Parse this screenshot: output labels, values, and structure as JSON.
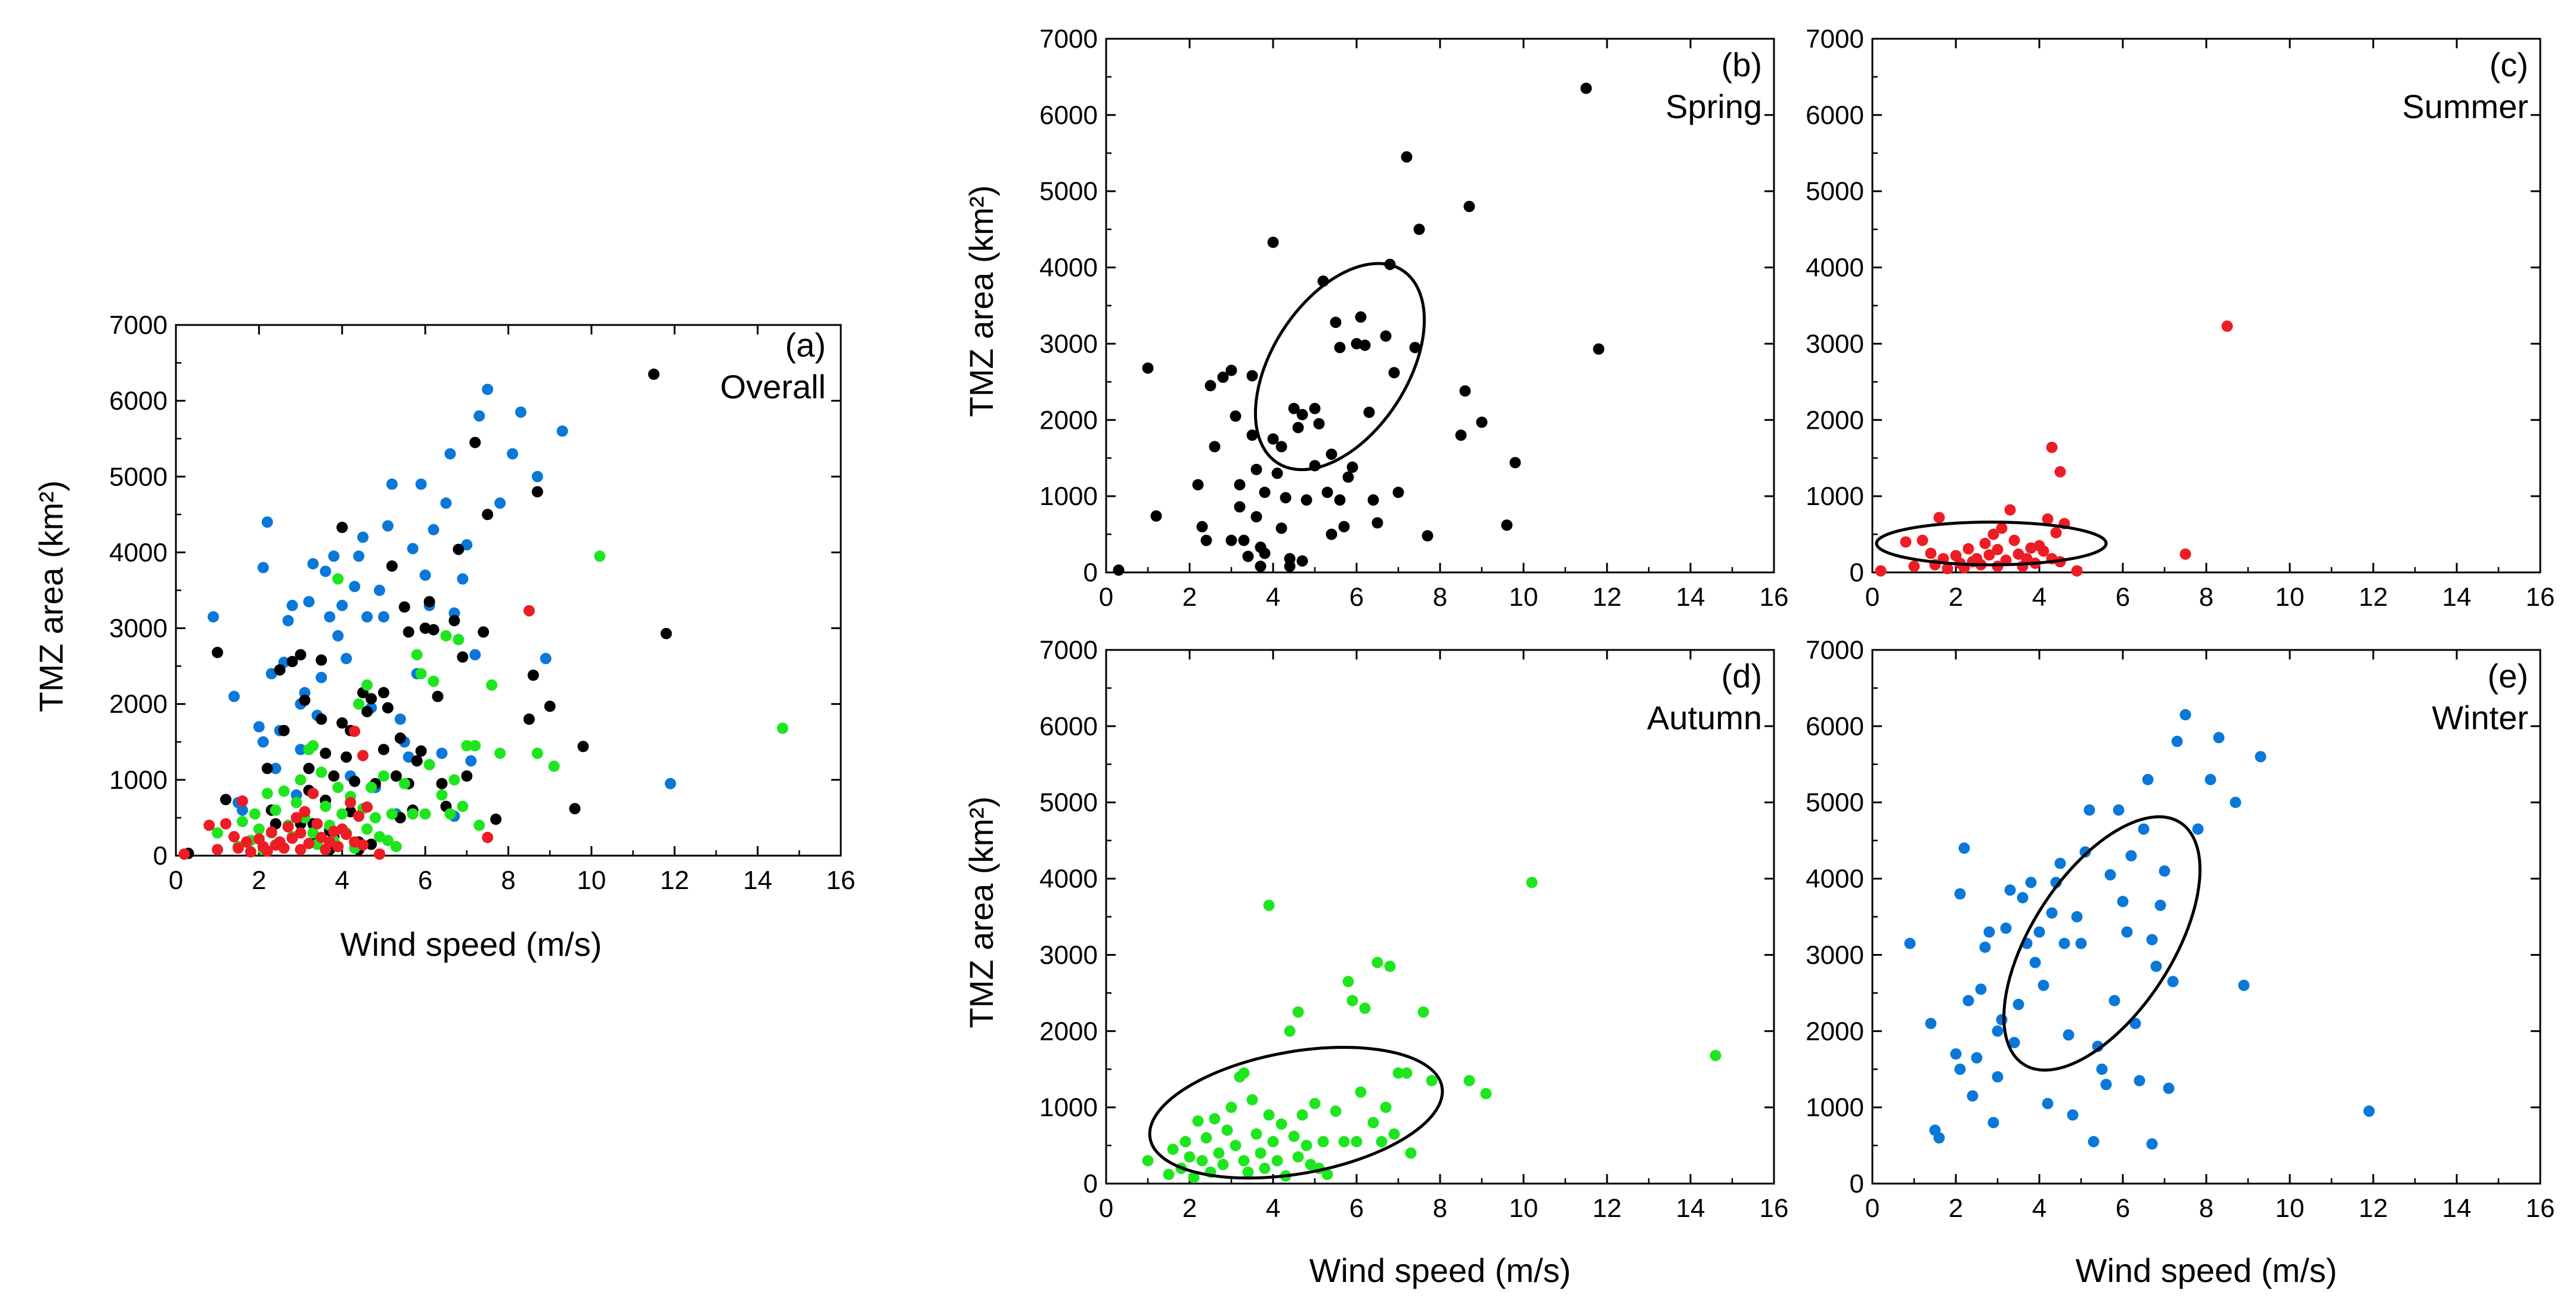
{
  "colors": {
    "spring": "#000000",
    "summer": "#ee1c24",
    "autumn": "#1ee61e",
    "winter": "#0a78d8"
  },
  "chart_data": [
    {
      "id": "a",
      "type": "scatter",
      "tag": "(a)",
      "title": "Overall",
      "xlabel": "Wind speed (m/s)",
      "ylabel": "TMZ area (km²)",
      "xlim": [
        0,
        16
      ],
      "ylim": [
        0,
        7000
      ],
      "xticks": [
        0,
        2,
        4,
        6,
        8,
        10,
        12,
        14,
        16
      ],
      "yticks": [
        0,
        1000,
        2000,
        3000,
        4000,
        5000,
        6000,
        7000
      ],
      "combine": [
        "spring",
        "summer",
        "autumn",
        "winter"
      ]
    },
    {
      "id": "b",
      "type": "scatter",
      "tag": "(b)",
      "title": "Spring",
      "season": "spring",
      "xlabel": "",
      "ylabel": "TMZ area (km²)",
      "xlim": [
        0,
        16
      ],
      "ylim": [
        0,
        7000
      ],
      "xticks": [
        0,
        2,
        4,
        6,
        8,
        10,
        12,
        14,
        16
      ],
      "yticks": [
        0,
        1000,
        2000,
        3000,
        4000,
        5000,
        6000,
        7000
      ],
      "ellipse": {
        "cx": 5.6,
        "cy": 2700,
        "rx_major": 2.75,
        "rx_minor": 1.62,
        "angle_deg": 57
      },
      "points": [
        [
          0.3,
          30
        ],
        [
          1.0,
          2680
        ],
        [
          1.2,
          740
        ],
        [
          2.2,
          1150
        ],
        [
          2.3,
          600
        ],
        [
          2.4,
          420
        ],
        [
          2.5,
          2450
        ],
        [
          2.6,
          1650
        ],
        [
          2.8,
          2560
        ],
        [
          3.0,
          2650
        ],
        [
          3.0,
          420
        ],
        [
          3.1,
          2050
        ],
        [
          3.2,
          1150
        ],
        [
          3.2,
          860
        ],
        [
          3.3,
          420
        ],
        [
          3.4,
          210
        ],
        [
          3.5,
          2580
        ],
        [
          3.5,
          1800
        ],
        [
          3.6,
          1350
        ],
        [
          3.6,
          730
        ],
        [
          3.7,
          330
        ],
        [
          3.7,
          80
        ],
        [
          3.8,
          1050
        ],
        [
          3.8,
          250
        ],
        [
          4.0,
          4330
        ],
        [
          4.0,
          1750
        ],
        [
          4.1,
          1300
        ],
        [
          4.2,
          1650
        ],
        [
          4.2,
          580
        ],
        [
          4.3,
          980
        ],
        [
          4.4,
          180
        ],
        [
          4.4,
          80
        ],
        [
          4.5,
          2150
        ],
        [
          4.6,
          1900
        ],
        [
          4.7,
          2070
        ],
        [
          4.7,
          150
        ],
        [
          4.8,
          950
        ],
        [
          5.0,
          2150
        ],
        [
          5.0,
          1400
        ],
        [
          5.1,
          1950
        ],
        [
          5.2,
          3820
        ],
        [
          5.3,
          1050
        ],
        [
          5.4,
          500
        ],
        [
          5.4,
          1550
        ],
        [
          5.5,
          3280
        ],
        [
          5.6,
          2950
        ],
        [
          5.6,
          950
        ],
        [
          5.7,
          600
        ],
        [
          5.8,
          1250
        ],
        [
          5.9,
          1380
        ],
        [
          6.0,
          3000
        ],
        [
          6.1,
          3350
        ],
        [
          6.2,
          2980
        ],
        [
          6.3,
          2100
        ],
        [
          6.4,
          950
        ],
        [
          6.5,
          650
        ],
        [
          6.7,
          3100
        ],
        [
          6.8,
          4040
        ],
        [
          6.9,
          2620
        ],
        [
          7.0,
          1050
        ],
        [
          7.2,
          5450
        ],
        [
          7.4,
          2950
        ],
        [
          7.5,
          4500
        ],
        [
          7.7,
          480
        ],
        [
          8.7,
          4800
        ],
        [
          8.6,
          2380
        ],
        [
          8.5,
          1800
        ],
        [
          9.0,
          1970
        ],
        [
          9.6,
          620
        ],
        [
          9.8,
          1440
        ],
        [
          11.5,
          6350
        ],
        [
          11.8,
          2930
        ]
      ]
    },
    {
      "id": "c",
      "type": "scatter",
      "tag": "(c)",
      "title": "Summer",
      "season": "summer",
      "xlabel": "",
      "ylabel": "",
      "xlim": [
        0,
        16
      ],
      "ylim": [
        0,
        7000
      ],
      "xticks": [
        0,
        2,
        4,
        6,
        8,
        10,
        12,
        14,
        16
      ],
      "yticks": [
        0,
        1000,
        2000,
        3000,
        4000,
        5000,
        6000,
        7000
      ],
      "ellipse": {
        "cx": 2.85,
        "cy": 380,
        "rx_major": 2.75,
        "rx_minor": 280,
        "angle_deg": 0
      },
      "points": [
        [
          0.2,
          20
        ],
        [
          0.8,
          400
        ],
        [
          1.0,
          80
        ],
        [
          1.2,
          420
        ],
        [
          1.4,
          250
        ],
        [
          1.5,
          100
        ],
        [
          1.6,
          720
        ],
        [
          1.7,
          180
        ],
        [
          1.8,
          50
        ],
        [
          2.0,
          220
        ],
        [
          2.1,
          120
        ],
        [
          2.2,
          60
        ],
        [
          2.3,
          310
        ],
        [
          2.4,
          140
        ],
        [
          2.5,
          180
        ],
        [
          2.6,
          100
        ],
        [
          2.7,
          380
        ],
        [
          2.8,
          230
        ],
        [
          2.9,
          500
        ],
        [
          3.0,
          80
        ],
        [
          3.0,
          300
        ],
        [
          3.1,
          580
        ],
        [
          3.2,
          160
        ],
        [
          3.3,
          820
        ],
        [
          3.4,
          420
        ],
        [
          3.5,
          240
        ],
        [
          3.6,
          80
        ],
        [
          3.7,
          180
        ],
        [
          3.8,
          320
        ],
        [
          3.9,
          120
        ],
        [
          4.0,
          350
        ],
        [
          4.1,
          280
        ],
        [
          4.2,
          700
        ],
        [
          4.3,
          180
        ],
        [
          4.4,
          520
        ],
        [
          4.5,
          140
        ],
        [
          4.6,
          640
        ],
        [
          4.3,
          1640
        ],
        [
          4.5,
          1320
        ],
        [
          4.9,
          20
        ],
        [
          7.5,
          240
        ],
        [
          8.5,
          3230
        ]
      ]
    },
    {
      "id": "d",
      "type": "scatter",
      "tag": "(d)",
      "title": "Autumn",
      "season": "autumn",
      "xlabel": "Wind speed (m/s)",
      "ylabel": "TMZ area (km²)",
      "xlim": [
        0,
        16
      ],
      "ylim": [
        0,
        7000
      ],
      "xticks": [
        0,
        2,
        4,
        6,
        8,
        10,
        12,
        14,
        16
      ],
      "yticks": [
        0,
        1000,
        2000,
        3000,
        4000,
        5000,
        6000,
        7000
      ],
      "ellipse": {
        "cx": 4.55,
        "cy": 930,
        "rx_major": 3.55,
        "rx_minor": 800,
        "angle_deg": 10
      },
      "points": [
        [
          1.0,
          300
        ],
        [
          1.5,
          120
        ],
        [
          1.6,
          450
        ],
        [
          1.8,
          200
        ],
        [
          1.9,
          550
        ],
        [
          2.0,
          350
        ],
        [
          2.1,
          80
        ],
        [
          2.2,
          820
        ],
        [
          2.3,
          300
        ],
        [
          2.4,
          600
        ],
        [
          2.5,
          150
        ],
        [
          2.6,
          850
        ],
        [
          2.7,
          400
        ],
        [
          2.8,
          250
        ],
        [
          2.9,
          700
        ],
        [
          3.0,
          1000
        ],
        [
          3.1,
          500
        ],
        [
          3.2,
          1400
        ],
        [
          3.3,
          1450
        ],
        [
          3.3,
          300
        ],
        [
          3.4,
          150
        ],
        [
          3.5,
          1100
        ],
        [
          3.6,
          650
        ],
        [
          3.7,
          400
        ],
        [
          3.8,
          200
        ],
        [
          3.9,
          3650
        ],
        [
          3.9,
          900
        ],
        [
          4.0,
          550
        ],
        [
          4.1,
          300
        ],
        [
          4.2,
          780
        ],
        [
          4.3,
          100
        ],
        [
          4.4,
          2000
        ],
        [
          4.5,
          620
        ],
        [
          4.6,
          2250
        ],
        [
          4.6,
          350
        ],
        [
          4.7,
          900
        ],
        [
          4.8,
          500
        ],
        [
          4.9,
          250
        ],
        [
          5.0,
          1050
        ],
        [
          5.1,
          200
        ],
        [
          5.2,
          550
        ],
        [
          5.3,
          120
        ],
        [
          5.5,
          950
        ],
        [
          5.7,
          550
        ],
        [
          5.8,
          2650
        ],
        [
          5.9,
          2400
        ],
        [
          6.0,
          550
        ],
        [
          6.1,
          1200
        ],
        [
          6.2,
          2300
        ],
        [
          6.4,
          800
        ],
        [
          6.5,
          2900
        ],
        [
          6.6,
          550
        ],
        [
          6.7,
          1000
        ],
        [
          6.8,
          2850
        ],
        [
          6.9,
          650
        ],
        [
          7.0,
          1450
        ],
        [
          7.2,
          1450
        ],
        [
          7.3,
          400
        ],
        [
          7.6,
          2250
        ],
        [
          7.8,
          1350
        ],
        [
          8.7,
          1350
        ],
        [
          9.1,
          1180
        ],
        [
          10.2,
          3950
        ],
        [
          14.6,
          1680
        ]
      ]
    },
    {
      "id": "e",
      "type": "scatter",
      "tag": "(e)",
      "title": "Winter",
      "season": "winter",
      "xlabel": "Wind speed (m/s)",
      "ylabel": "",
      "xlim": [
        0,
        16
      ],
      "ylim": [
        0,
        7000
      ],
      "xticks": [
        0,
        2,
        4,
        6,
        8,
        10,
        12,
        14,
        16
      ],
      "yticks": [
        0,
        1000,
        2000,
        3000,
        4000,
        5000,
        6000,
        7000
      ],
      "ellipse": {
        "cx": 5.5,
        "cy": 3150,
        "rx_major": 3.45,
        "rx_minor": 1.68,
        "angle_deg": 57
      },
      "points": [
        [
          0.9,
          3150
        ],
        [
          1.4,
          2100
        ],
        [
          1.5,
          700
        ],
        [
          1.6,
          600
        ],
        [
          2.0,
          1700
        ],
        [
          2.1,
          3800
        ],
        [
          2.1,
          1500
        ],
        [
          2.2,
          4400
        ],
        [
          2.3,
          2400
        ],
        [
          2.4,
          1150
        ],
        [
          2.5,
          1650
        ],
        [
          2.6,
          2550
        ],
        [
          2.7,
          3100
        ],
        [
          2.8,
          3300
        ],
        [
          2.9,
          800
        ],
        [
          3.0,
          2000
        ],
        [
          3.0,
          1400
        ],
        [
          3.1,
          2150
        ],
        [
          3.2,
          3350
        ],
        [
          3.3,
          3850
        ],
        [
          3.4,
          1850
        ],
        [
          3.5,
          2350
        ],
        [
          3.6,
          3750
        ],
        [
          3.7,
          3150
        ],
        [
          3.8,
          3950
        ],
        [
          3.9,
          2900
        ],
        [
          4.0,
          3300
        ],
        [
          4.1,
          2600
        ],
        [
          4.2,
          1050
        ],
        [
          4.3,
          3550
        ],
        [
          4.4,
          3950
        ],
        [
          4.5,
          4200
        ],
        [
          4.6,
          3150
        ],
        [
          4.7,
          1950
        ],
        [
          4.8,
          900
        ],
        [
          4.9,
          3500
        ],
        [
          5.0,
          3150
        ],
        [
          5.1,
          4350
        ],
        [
          5.2,
          4900
        ],
        [
          5.3,
          550
        ],
        [
          5.4,
          1800
        ],
        [
          5.5,
          1500
        ],
        [
          5.6,
          1300
        ],
        [
          5.7,
          4050
        ],
        [
          5.8,
          2400
        ],
        [
          5.9,
          4900
        ],
        [
          6.0,
          3700
        ],
        [
          6.1,
          3300
        ],
        [
          6.2,
          4300
        ],
        [
          6.3,
          2100
        ],
        [
          6.4,
          1350
        ],
        [
          6.5,
          4650
        ],
        [
          6.6,
          5300
        ],
        [
          6.7,
          3200
        ],
        [
          6.8,
          2850
        ],
        [
          6.9,
          3650
        ],
        [
          7.0,
          4100
        ],
        [
          7.1,
          1250
        ],
        [
          7.2,
          2650
        ],
        [
          7.3,
          5800
        ],
        [
          7.5,
          6150
        ],
        [
          7.8,
          4650
        ],
        [
          8.1,
          5300
        ],
        [
          8.3,
          5850
        ],
        [
          8.7,
          5000
        ],
        [
          8.9,
          2600
        ],
        [
          9.3,
          5600
        ],
        [
          6.7,
          520
        ],
        [
          11.9,
          950
        ]
      ]
    }
  ]
}
